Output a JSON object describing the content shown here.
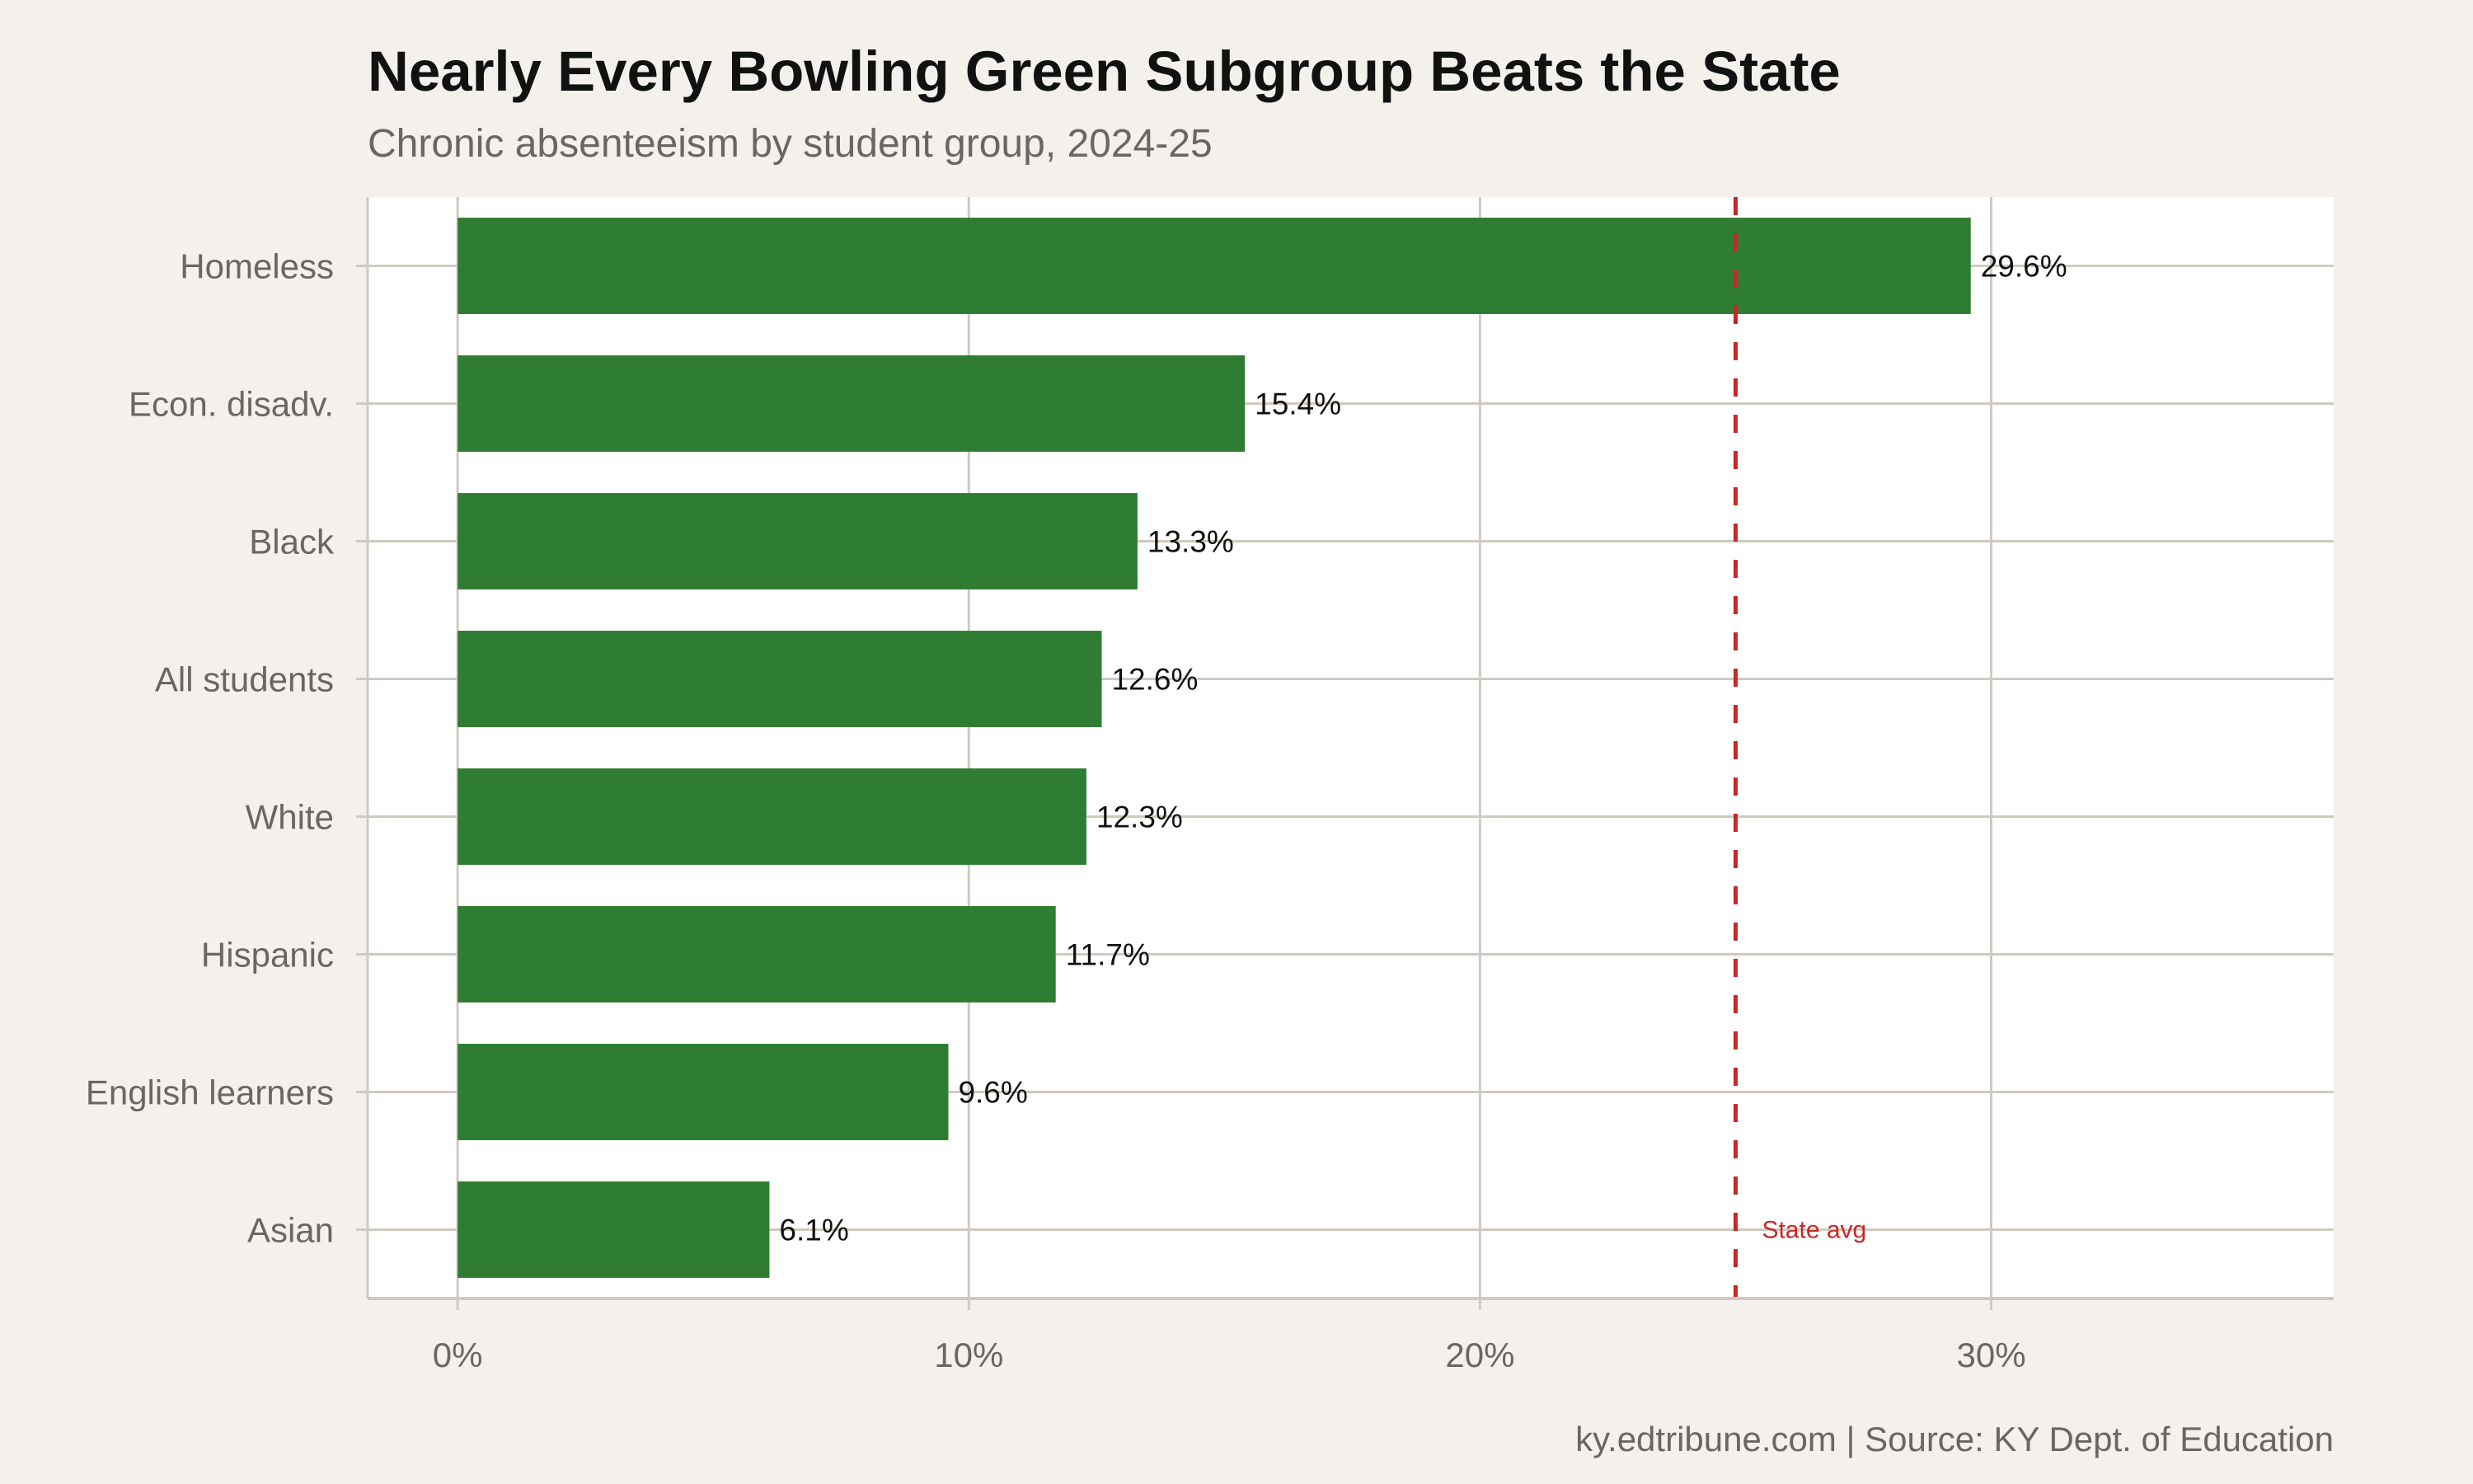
{
  "chart_data": {
    "type": "bar",
    "orientation": "horizontal",
    "title": "Nearly Every Bowling Green Subgroup Beats the State",
    "subtitle": "Chronic absenteeism by student group, 2024-25",
    "caption": "ky.edtribune.com | Source: KY Dept. of Education",
    "xlabel": "",
    "ylabel": "",
    "categories": [
      "Homeless",
      "Econ. disadv.",
      "Black",
      "All students",
      "White",
      "Hispanic",
      "English learners",
      "Asian"
    ],
    "values": [
      29.6,
      15.4,
      13.3,
      12.6,
      12.3,
      11.7,
      9.6,
      6.1
    ],
    "value_labels": [
      "29.6%",
      "15.4%",
      "13.3%",
      "12.6%",
      "12.3%",
      "11.7%",
      "9.6%",
      "6.1%"
    ],
    "xlim": [
      -1.76,
      36.7
    ],
    "x_ticks": [
      0,
      10,
      20,
      30
    ],
    "x_tick_labels": [
      "0%",
      "10%",
      "20%",
      "30%"
    ],
    "reference_line": {
      "value": 25.0,
      "label": "State avg",
      "style": "dashed"
    },
    "grid": true,
    "colors": {
      "bar": "#2e7d32",
      "reference": "#c62828",
      "background": "#f4f1ec",
      "panel": "#ffffff",
      "grid": "#cfcac1",
      "axis_text": "#6b6760"
    }
  }
}
